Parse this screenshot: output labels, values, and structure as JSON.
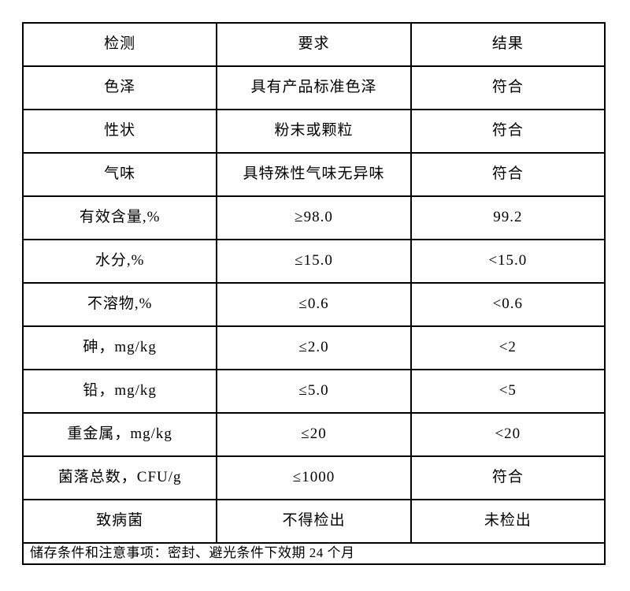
{
  "table": {
    "headers": [
      "检测",
      "要求",
      "结果"
    ],
    "rows": [
      [
        "色泽",
        "具有产品标准色泽",
        "符合"
      ],
      [
        "性状",
        "粉末或颗粒",
        "符合"
      ],
      [
        "气味",
        "具特殊性气味无异味",
        "符合"
      ],
      [
        "有效含量,%",
        "≥98.0",
        "99.2"
      ],
      [
        "水分,%",
        "≤15.0",
        "<15.0"
      ],
      [
        "不溶物,%",
        "≤0.6",
        "<0.6"
      ],
      [
        "砷，mg/kg",
        "≤2.0",
        "<2"
      ],
      [
        "铅，mg/kg",
        "≤5.0",
        "<5"
      ],
      [
        "重金属，mg/kg",
        "≤20",
        "<20"
      ],
      [
        "菌落总数，CFU/g",
        "≤1000",
        "符合"
      ],
      [
        "致病菌",
        "不得检出",
        "未检出"
      ]
    ],
    "footer": "储存条件和注意事项：密封、避光条件下效期 24 个月"
  },
  "colors": {
    "border": "#000000",
    "background": "#ffffff",
    "text": "#000000"
  }
}
